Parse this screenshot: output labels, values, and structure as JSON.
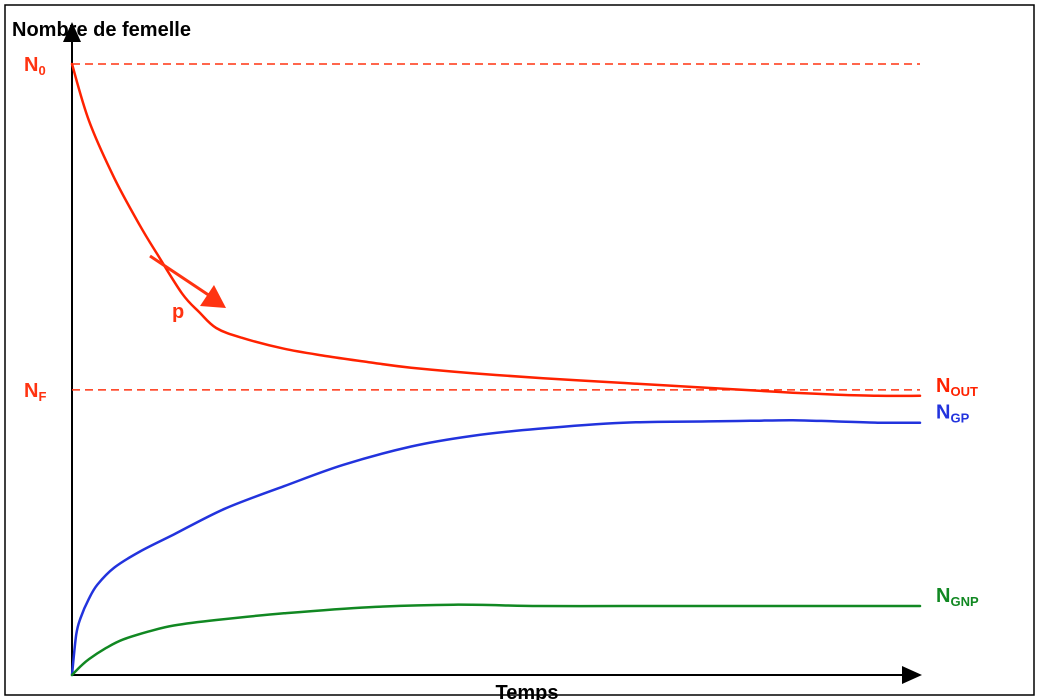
{
  "chart_data": {
    "type": "line",
    "title": "",
    "ylabel": "Nombre de femelle",
    "xlabel": "Temps",
    "grid": false,
    "legend": "none",
    "reference_lines": [
      {
        "name_main": "N",
        "name_sub": "0",
        "y": 1.0,
        "color": "#ff3311",
        "style": "dashed"
      },
      {
        "name_main": "N",
        "name_sub": "F",
        "y": 0.4667,
        "color": "#ff3311",
        "style": "dashed"
      }
    ],
    "annotation": {
      "text": "p",
      "color": "#ff3311"
    },
    "series": [
      {
        "key": "out",
        "label_main": "N",
        "label_sub": "OUT",
        "color": "#ff2200",
        "x": [
          0,
          0.02,
          0.05,
          0.08,
          0.1,
          0.13,
          0.15,
          0.17,
          0.2,
          0.25,
          0.3,
          0.35,
          0.4,
          0.5,
          0.6,
          0.7,
          0.8,
          0.85,
          0.9,
          0.95,
          1.0
        ],
        "y": [
          1.0,
          0.907,
          0.813,
          0.736,
          0.69,
          0.624,
          0.594,
          0.568,
          0.552,
          0.534,
          0.522,
          0.512,
          0.503,
          0.491,
          0.482,
          0.474,
          0.466,
          0.462,
          0.459,
          0.457,
          0.457
        ]
      },
      {
        "key": "gp",
        "label_main": "N",
        "label_sub": "GP",
        "color": "#2233dd",
        "x": [
          0,
          0.005,
          0.01,
          0.02,
          0.03,
          0.05,
          0.08,
          0.12,
          0.18,
          0.25,
          0.32,
          0.4,
          0.47,
          0.55,
          0.65,
          0.75,
          0.8,
          0.85,
          0.9,
          0.95,
          1.0
        ],
        "y": [
          0.0,
          0.066,
          0.093,
          0.125,
          0.148,
          0.176,
          0.202,
          0.23,
          0.272,
          0.309,
          0.344,
          0.374,
          0.391,
          0.403,
          0.413,
          0.415,
          0.416,
          0.417,
          0.415,
          0.413,
          0.413
        ]
      },
      {
        "key": "gnp",
        "label_main": "N",
        "label_sub": "GNP",
        "color": "#118822",
        "x": [
          0,
          0.01,
          0.02,
          0.04,
          0.06,
          0.09,
          0.12,
          0.17,
          0.25,
          0.35,
          0.45,
          0.55,
          0.65,
          0.75,
          0.85,
          0.95,
          1.0
        ],
        "y": [
          0.0,
          0.014,
          0.026,
          0.044,
          0.058,
          0.071,
          0.081,
          0.09,
          0.101,
          0.111,
          0.115,
          0.113,
          0.113,
          0.113,
          0.113,
          0.113,
          0.113
        ]
      }
    ]
  }
}
